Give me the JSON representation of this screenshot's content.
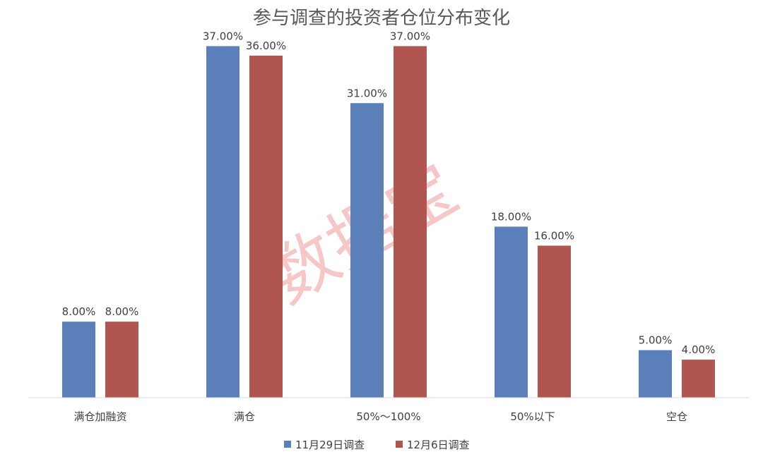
{
  "chart_data": {
    "type": "bar",
    "title": "参与调查的投资者仓位分布变化",
    "categories": [
      "满仓加融资",
      "满仓",
      "50%～100%",
      "50%以下",
      "空仓"
    ],
    "series": [
      {
        "name": "11月29日调查",
        "values": [
          8.0,
          37.0,
          31.0,
          18.0,
          5.0
        ],
        "color": "#5b7fb9"
      },
      {
        "name": "12月6日调查",
        "values": [
          8.0,
          36.0,
          37.0,
          16.0,
          4.0
        ],
        "color": "#b05550"
      }
    ],
    "value_format": "0.00%",
    "ylim": [
      0,
      40
    ],
    "grid": false,
    "legend_position": "bottom"
  },
  "watermark": "数据宝"
}
